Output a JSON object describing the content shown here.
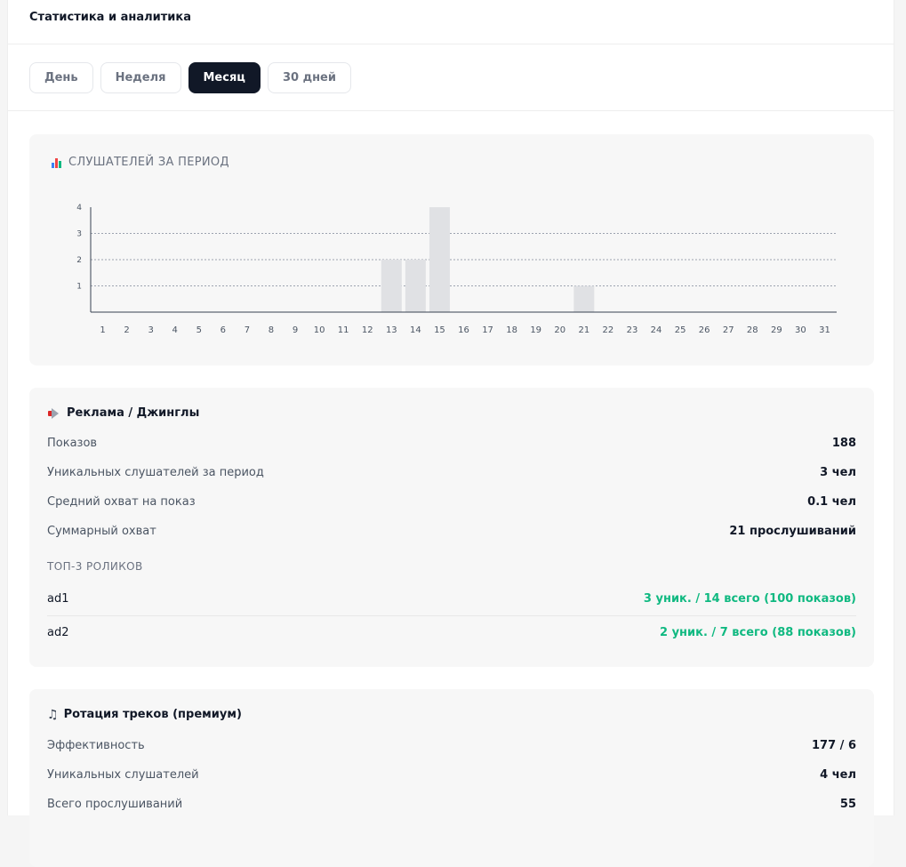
{
  "header": {
    "title": "Статистика и аналитика"
  },
  "tabs": [
    {
      "label": "День",
      "active": false
    },
    {
      "label": "Неделя",
      "active": false
    },
    {
      "label": "Месяц",
      "active": true
    },
    {
      "label": "30 дней",
      "active": false
    }
  ],
  "listeners_chart": {
    "title": "СЛУШАТЕЛЕЙ ЗА ПЕРИОД",
    "icon": "bar-chart-icon"
  },
  "chart_data": {
    "type": "bar",
    "title": "СЛУШАТЕЛЕЙ ЗА ПЕРИОД",
    "xlabel": "",
    "ylabel": "",
    "categories": [
      "1",
      "2",
      "3",
      "4",
      "5",
      "6",
      "7",
      "8",
      "9",
      "10",
      "11",
      "12",
      "13",
      "14",
      "15",
      "16",
      "17",
      "18",
      "19",
      "20",
      "21",
      "22",
      "23",
      "24",
      "25",
      "26",
      "27",
      "28",
      "29",
      "30",
      "31"
    ],
    "values": [
      0,
      0,
      0,
      0,
      0,
      0,
      0,
      0,
      0,
      0,
      0,
      0,
      2,
      2,
      4,
      0,
      0,
      0,
      0,
      0,
      1,
      0,
      0,
      0,
      0,
      0,
      0,
      0,
      0,
      0,
      0
    ],
    "yticks": [
      1,
      2,
      3,
      4
    ],
    "ylim": [
      0,
      4
    ],
    "grid": "horizontal dotted",
    "bar_color": "#e0e1e4"
  },
  "ads": {
    "icon": "megaphone-icon",
    "title": "Реклама / Джинглы",
    "rows": [
      {
        "label": "Показов",
        "value": "188"
      },
      {
        "label": "Уникальных слушателей за период",
        "value": "3 чел"
      },
      {
        "label": "Средний охват на показ",
        "value": "0.1 чел"
      },
      {
        "label": "Суммарный охват",
        "value": "21 прослушиваний"
      }
    ],
    "top_label": "ТОП-3 РОЛИКОВ",
    "top": [
      {
        "name": "ad1",
        "stat": "3 уник. / 14 всего (100 показов)"
      },
      {
        "name": "ad2",
        "stat": "2 уник. / 7 всего (88 показов)"
      }
    ]
  },
  "rotation": {
    "icon": "music-note-icon",
    "title": "Ротация треков (премиум)",
    "rows": [
      {
        "label": "Эффективность",
        "value": "177 / 6"
      },
      {
        "label": "Уникальных слушателей",
        "value": "4 чел"
      },
      {
        "label": "Всего прослушиваний",
        "value": "55"
      }
    ]
  },
  "colors": {
    "accent_dark": "#111827",
    "success": "#10b981",
    "card_bg": "#f7f7f7"
  }
}
